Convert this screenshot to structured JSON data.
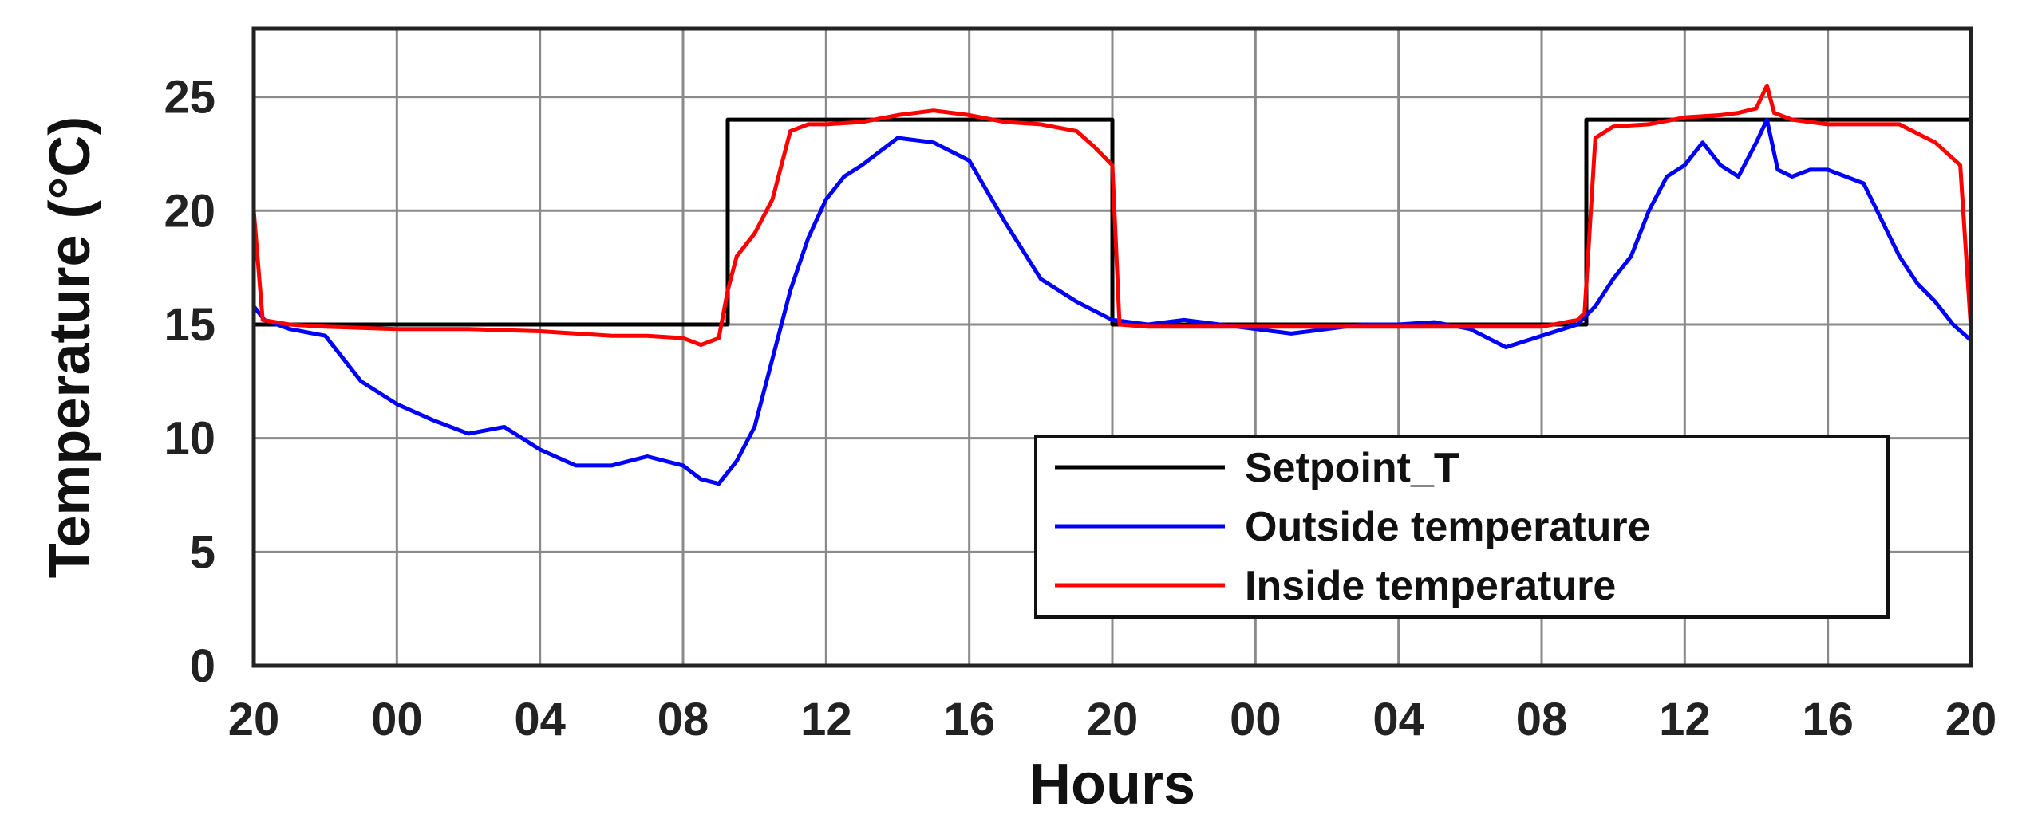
{
  "chart_data": {
    "type": "line",
    "title": "",
    "xlabel": "Hours",
    "ylabel": "Temperature (°C)",
    "xlim": [
      0,
      48
    ],
    "ylim": [
      0,
      28
    ],
    "x_ticks": [
      0,
      4,
      8,
      12,
      16,
      20,
      24,
      28,
      32,
      36,
      40,
      44,
      48
    ],
    "x_tick_labels": [
      "20",
      "00",
      "04",
      "08",
      "12",
      "16",
      "20",
      "00",
      "04",
      "08",
      "12",
      "16",
      "20"
    ],
    "y_ticks": [
      0,
      5,
      10,
      15,
      20,
      25
    ],
    "y_tick_labels": [
      "0",
      "5",
      "10",
      "15",
      "20",
      "25"
    ],
    "grid": true,
    "legend": {
      "position": "lower-right"
    },
    "series": [
      {
        "name": "Setpoint_T",
        "color": "#000000",
        "x": [
          0,
          13.25,
          13.25,
          24,
          24,
          37.25,
          37.25,
          48
        ],
        "y": [
          15,
          15,
          24,
          24,
          15,
          15,
          24,
          24
        ]
      },
      {
        "name": "Outside temperature",
        "color": "#0000ff",
        "x": [
          0,
          0.3,
          1,
          2,
          3,
          4,
          5,
          6,
          7,
          8,
          9,
          10,
          11,
          12,
          12.5,
          13,
          13.5,
          14,
          14.5,
          15,
          15.5,
          16,
          16.5,
          17,
          18,
          19,
          20,
          21,
          22,
          23,
          24,
          25,
          26,
          27,
          28,
          29,
          30,
          31,
          32,
          33,
          34,
          35,
          36,
          37,
          37.5,
          38,
          38.5,
          39,
          39.5,
          40,
          40.5,
          41,
          41.5,
          42,
          42.3,
          42.6,
          43,
          43.5,
          44,
          45,
          46,
          46.5,
          47,
          47.5,
          48
        ],
        "y": [
          15.8,
          15.2,
          14.8,
          14.5,
          12.5,
          11.5,
          10.8,
          10.2,
          10.5,
          9.5,
          8.8,
          8.8,
          9.2,
          8.8,
          8.2,
          8.0,
          9.0,
          10.5,
          13.5,
          16.5,
          18.8,
          20.5,
          21.5,
          22.0,
          23.2,
          23.0,
          22.2,
          19.5,
          17.0,
          16.0,
          15.2,
          15.0,
          15.2,
          15.0,
          14.8,
          14.6,
          14.8,
          15.0,
          15.0,
          15.1,
          14.8,
          14.0,
          14.5,
          15.0,
          15.8,
          17.0,
          18.0,
          20.0,
          21.5,
          22.0,
          23.0,
          22.0,
          21.5,
          23.0,
          24.0,
          21.8,
          21.5,
          21.8,
          21.8,
          21.2,
          18.0,
          16.8,
          16.0,
          15.0,
          14.3
        ]
      },
      {
        "name": "Inside temperature",
        "color": "#ff0000",
        "x": [
          0,
          0.25,
          1,
          2,
          4,
          6,
          8,
          9,
          10,
          11,
          12,
          12.5,
          13,
          13.25,
          13.5,
          14,
          14.5,
          15,
          15.5,
          16,
          17,
          18,
          19,
          20,
          21,
          22,
          23,
          23.5,
          24,
          24.2,
          25,
          26,
          28,
          30,
          32,
          34,
          36,
          37,
          37.2,
          37.5,
          38,
          39,
          40,
          41,
          41.5,
          42,
          42.3,
          42.5,
          43,
          44,
          45,
          46,
          47,
          47.7,
          48
        ],
        "y": [
          20,
          15.2,
          15.0,
          14.9,
          14.8,
          14.8,
          14.7,
          14.6,
          14.5,
          14.5,
          14.4,
          14.1,
          14.4,
          16.5,
          18.0,
          19.0,
          20.5,
          23.5,
          23.8,
          23.8,
          23.9,
          24.2,
          24.4,
          24.2,
          23.9,
          23.8,
          23.5,
          22.8,
          22.0,
          15.0,
          14.9,
          14.9,
          14.9,
          14.9,
          14.9,
          14.9,
          14.9,
          15.2,
          15.5,
          23.2,
          23.7,
          23.8,
          24.1,
          24.2,
          24.3,
          24.5,
          25.5,
          24.3,
          24.0,
          23.8,
          23.8,
          23.8,
          23.0,
          22.0,
          14.8
        ]
      }
    ]
  }
}
